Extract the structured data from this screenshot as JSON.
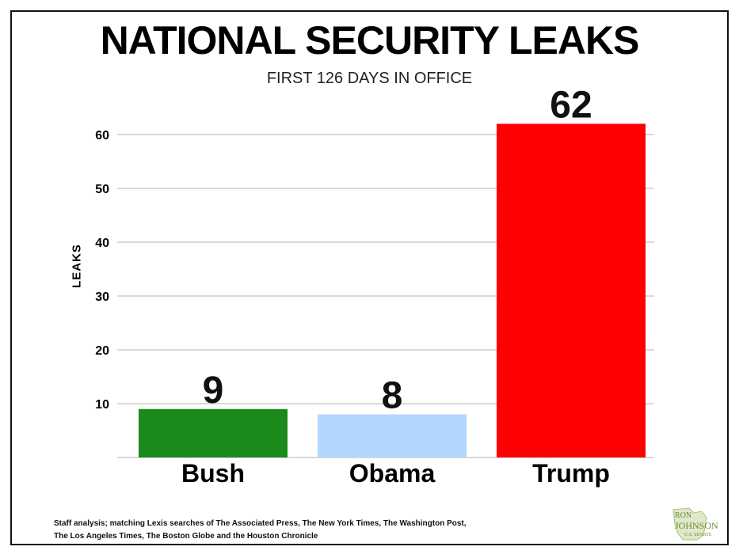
{
  "chart_data": {
    "type": "bar",
    "title": "NATIONAL SECURITY LEAKS",
    "subtitle": "FIRST 126 DAYS IN OFFICE",
    "xlabel": "",
    "ylabel": "LEAKS",
    "categories": [
      "Bush",
      "Obama",
      "Trump"
    ],
    "values": [
      9,
      8,
      62
    ],
    "data_labels": [
      "9",
      "8",
      "62"
    ],
    "colors": [
      "#1a8a1a",
      "#b3d6ff",
      "#ff0000"
    ],
    "ylim": [
      0,
      65
    ],
    "yticks": [
      10,
      20,
      30,
      40,
      50,
      60
    ],
    "grid": true,
    "legend": "none"
  },
  "footnote": {
    "line1": "Staff analysis; matching Lexis searches of The Associated Press, The New York Times, The Washington Post,",
    "line2": "The Los Angeles Times, The Boston Globe and the Houston Chronicle"
  },
  "logo": {
    "line1": "RON",
    "line2": "JOHNSON",
    "line3": "U.S. SENATE",
    "color": "#6b8a3a"
  }
}
